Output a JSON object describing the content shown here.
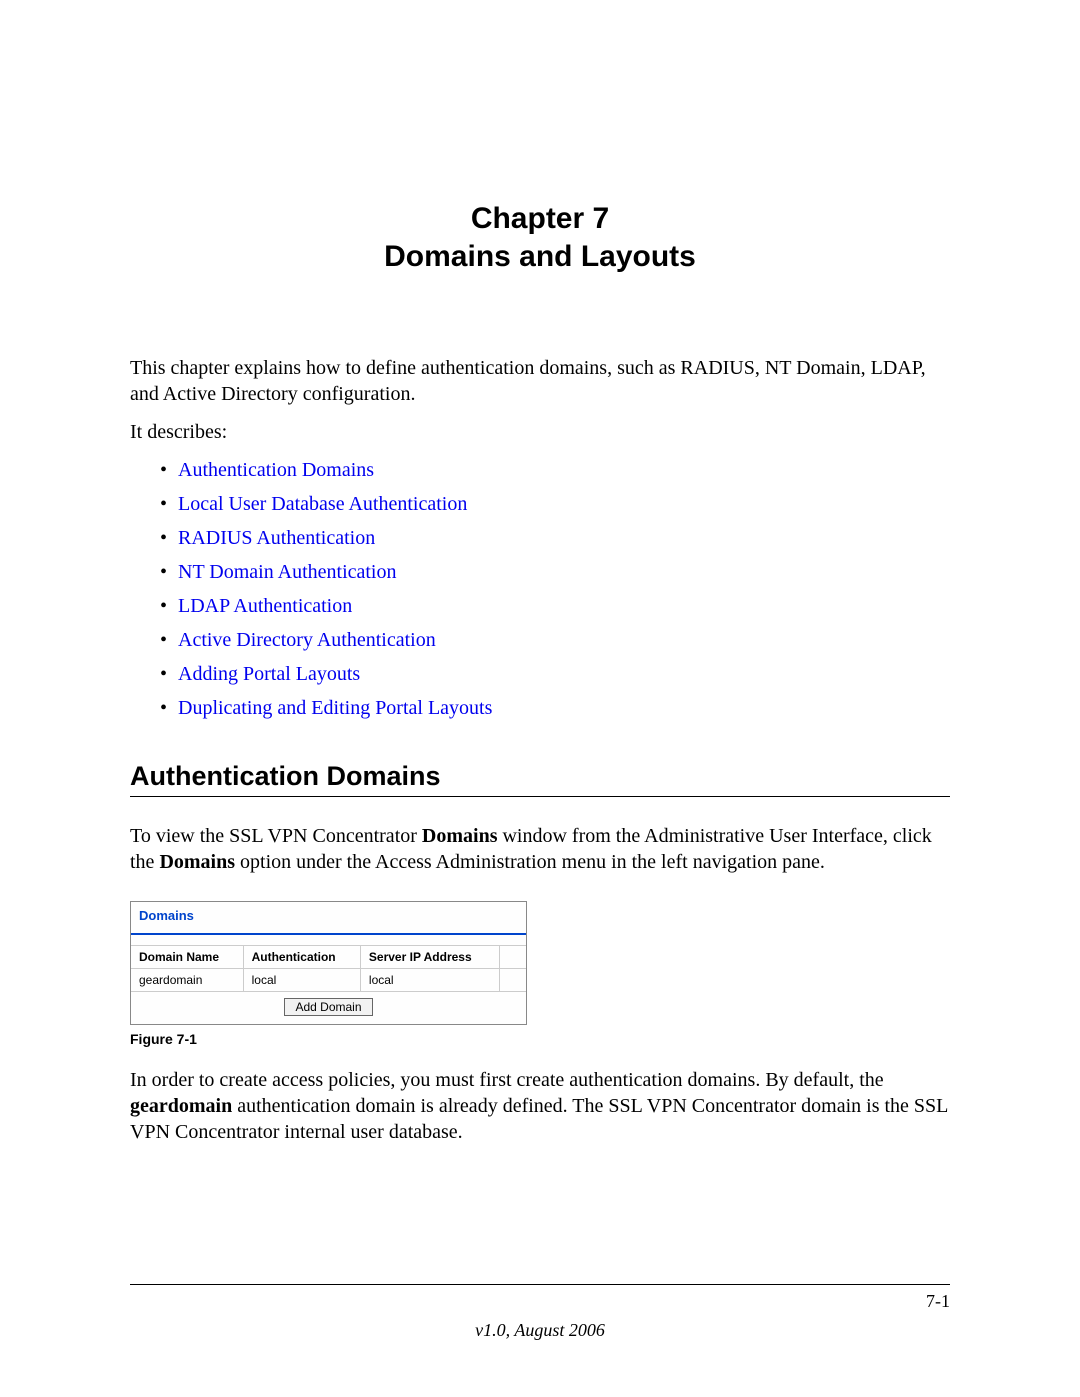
{
  "chapter": {
    "line1": "Chapter 7",
    "line2": "Domains and Layouts"
  },
  "intro": "This chapter explains how to define authentication domains, such as RADIUS, NT Domain, LDAP, and Active Directory configuration.",
  "describes_label": "It describes:",
  "links": [
    "Authentication Domains",
    "Local User Database Authentication",
    "RADIUS Authentication",
    "NT Domain Authentication",
    "LDAP Authentication",
    "Active Directory Authentication",
    "Adding Portal Layouts",
    "Duplicating and Editing Portal Layouts"
  ],
  "section_heading": "Authentication Domains",
  "para1_a": "To view the SSL VPN Concentrator ",
  "para1_b": "Domains",
  "para1_c": " window from the Administrative User Interface, click the ",
  "para1_d": "Domains",
  "para1_e": " option under the Access Administration menu in the left navigation pane.",
  "figure": {
    "title": "Domains",
    "headers": [
      "Domain Name",
      "Authentication",
      "Server IP Address"
    ],
    "row": [
      "geardomain",
      "local",
      "local"
    ],
    "button": "Add Domain",
    "caption": "Figure 7-1"
  },
  "para2_a": "In order to create access policies, you must first create authentication domains. By default, the ",
  "para2_b": "geardomain",
  "para2_c": " authentication domain is already defined. The SSL VPN Concentrator domain is the SSL VPN Concentrator internal user database.",
  "footer": {
    "page": "7-1",
    "version": "v1.0, August 2006"
  },
  "colors": {
    "link": "#0000ee",
    "title_blue": "#0044cc"
  }
}
